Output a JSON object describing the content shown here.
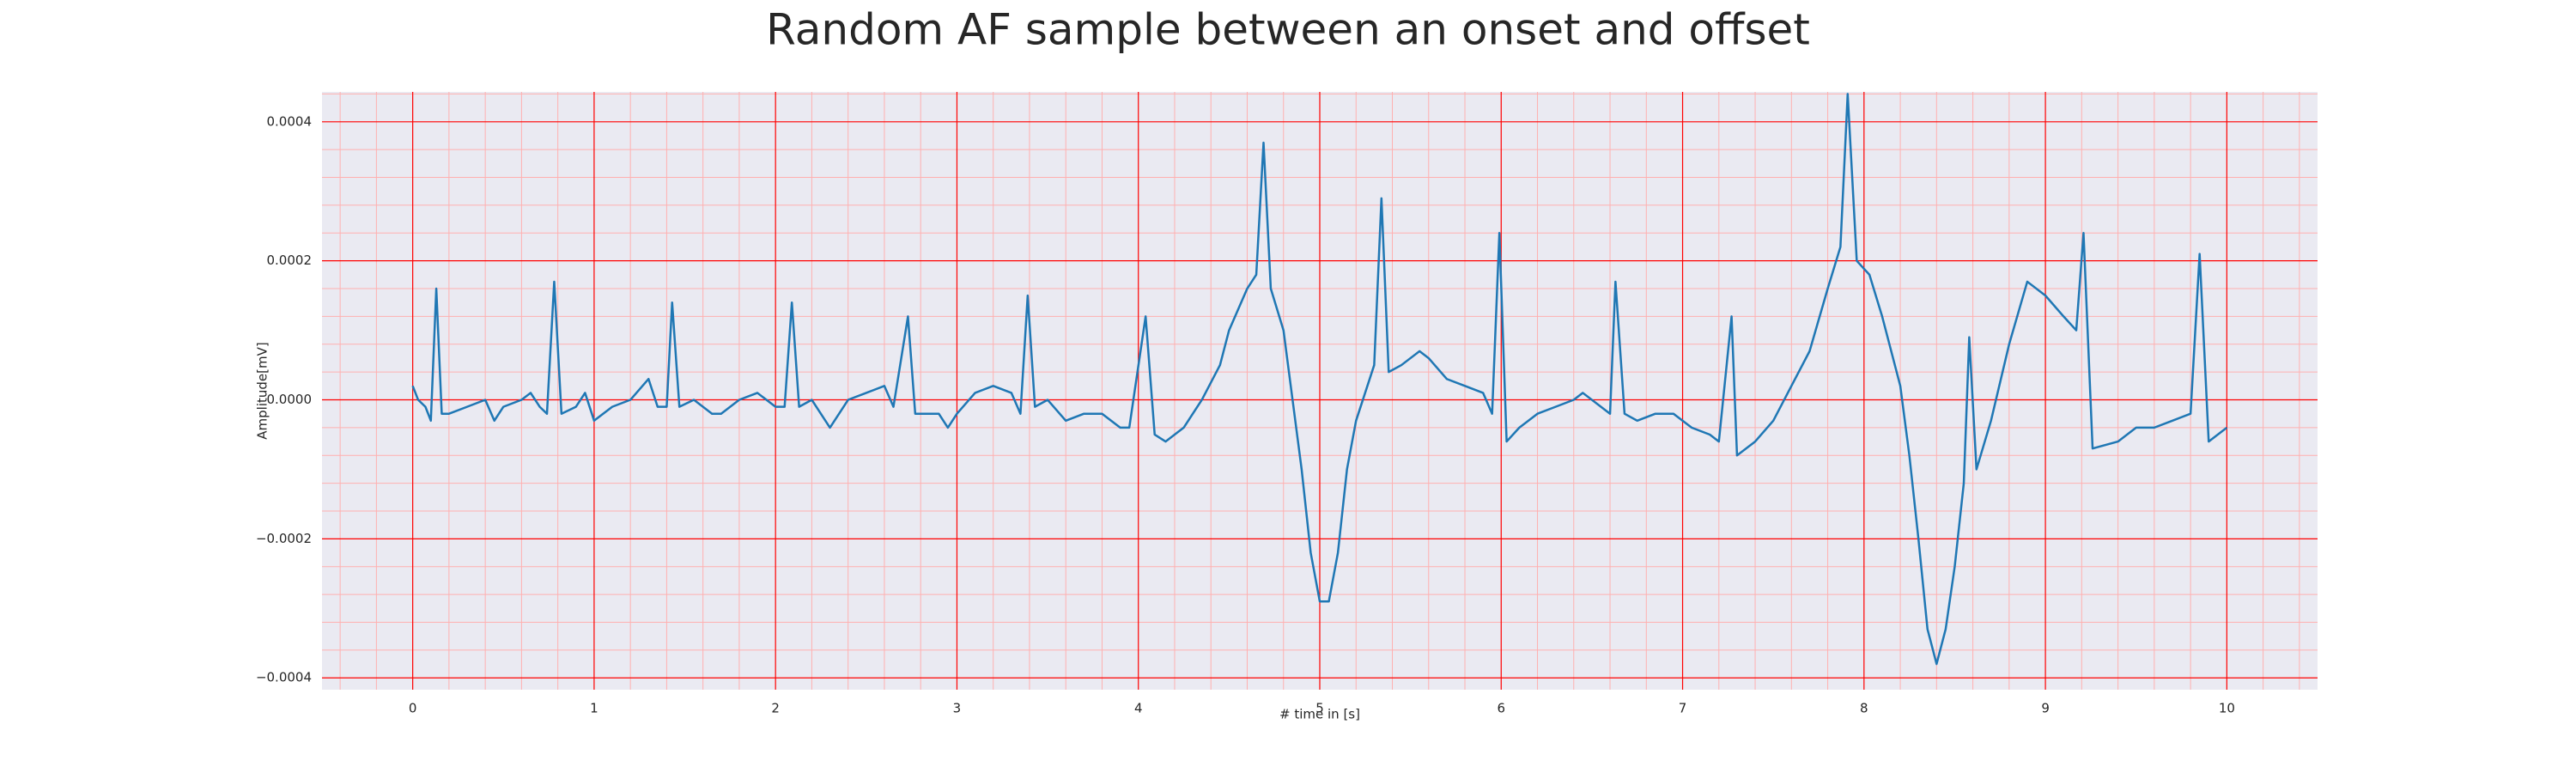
{
  "chart_data": {
    "type": "line",
    "title": "Random AF sample between an onset and offset",
    "x_label": "# time in [s]",
    "y_label": "Amplitude[mV]",
    "color": "#1f77b4",
    "x": [
      0,
      0.03,
      0.07,
      0.1,
      0.13,
      0.16,
      0.2,
      0.3,
      0.4,
      0.45,
      0.5,
      0.6,
      0.65,
      0.7,
      0.74,
      0.78,
      0.82,
      0.9,
      0.95,
      1.0,
      1.1,
      1.2,
      1.3,
      1.35,
      1.4,
      1.43,
      1.47,
      1.55,
      1.65,
      1.7,
      1.8,
      1.9,
      2.0,
      2.05,
      2.09,
      2.13,
      2.2,
      2.3,
      2.4,
      2.5,
      2.6,
      2.65,
      2.73,
      2.77,
      2.9,
      2.95,
      3.0,
      3.1,
      3.2,
      3.3,
      3.35,
      3.39,
      3.43,
      3.5,
      3.6,
      3.7,
      3.8,
      3.9,
      3.95,
      4.04,
      4.09,
      4.15,
      4.25,
      4.35,
      4.45,
      4.5,
      4.6,
      4.65,
      4.69,
      4.73,
      4.8,
      4.85,
      4.9,
      4.95,
      5.0,
      5.05,
      5.1,
      5.15,
      5.2,
      5.25,
      5.3,
      5.34,
      5.38,
      5.45,
      5.55,
      5.6,
      5.7,
      5.8,
      5.9,
      5.95,
      5.99,
      6.03,
      6.1,
      6.2,
      6.3,
      6.4,
      6.45,
      6.55,
      6.6,
      6.63,
      6.68,
      6.75,
      6.85,
      6.95,
      7.05,
      7.15,
      7.2,
      7.27,
      7.3,
      7.4,
      7.5,
      7.6,
      7.7,
      7.8,
      7.87,
      7.91,
      7.96,
      8.03,
      8.1,
      8.2,
      8.25,
      8.3,
      8.35,
      8.4,
      8.45,
      8.5,
      8.55,
      8.58,
      8.62,
      8.7,
      8.8,
      8.9,
      9.0,
      9.1,
      9.17,
      9.21,
      9.26,
      9.4,
      9.5,
      9.6,
      9.7,
      9.8,
      9.85,
      9.9,
      10.0
    ],
    "values": [
      2e-05,
      0,
      -1e-05,
      -3e-05,
      0.00016,
      -2e-05,
      -2e-05,
      -1e-05,
      0,
      -3e-05,
      -1e-05,
      0,
      1e-05,
      -1e-05,
      -2e-05,
      0.00017,
      -2e-05,
      -1e-05,
      1e-05,
      -3e-05,
      -1e-05,
      0,
      3e-05,
      -1e-05,
      -1e-05,
      0.00014,
      -1e-05,
      0,
      -2e-05,
      -2e-05,
      0,
      1e-05,
      -1e-05,
      -1e-05,
      0.00014,
      -1e-05,
      0,
      -4e-05,
      0,
      1e-05,
      2e-05,
      -1e-05,
      0.00012,
      -2e-05,
      -2e-05,
      -4e-05,
      -2e-05,
      1e-05,
      2e-05,
      1e-05,
      -2e-05,
      0.00015,
      -1e-05,
      0,
      -3e-05,
      -2e-05,
      -2e-05,
      -4e-05,
      -4e-05,
      0.00012,
      -5e-05,
      -6e-05,
      -4e-05,
      0,
      5e-05,
      0.0001,
      0.00016,
      0.00018,
      0.00037,
      0.00016,
      0.0001,
      0,
      -0.0001,
      -0.00022,
      -0.00029,
      -0.00029,
      -0.00022,
      -0.0001,
      -3e-05,
      1e-05,
      5e-05,
      0.00029,
      4e-05,
      5e-05,
      7e-05,
      6e-05,
      3e-05,
      2e-05,
      1e-05,
      -2e-05,
      0.00024,
      -6e-05,
      -4e-05,
      -2e-05,
      -1e-05,
      0,
      1e-05,
      -1e-05,
      -2e-05,
      0.00017,
      -2e-05,
      -3e-05,
      -2e-05,
      -2e-05,
      -4e-05,
      -5e-05,
      -6e-05,
      0.00012,
      -8e-05,
      -6e-05,
      -3e-05,
      2e-05,
      7e-05,
      0.00016,
      0.00022,
      0.00044,
      0.0002,
      0.00018,
      0.00012,
      2e-05,
      -8e-05,
      -0.0002,
      -0.00033,
      -0.00038,
      -0.00033,
      -0.00024,
      -0.00012,
      9e-05,
      -0.0001,
      -3e-05,
      8e-05,
      0.00017,
      0.00015,
      0.00012,
      0.0001,
      0.00024,
      -7e-05,
      -6e-05,
      -4e-05,
      -4e-05,
      -3e-05,
      -2e-05,
      0.00021,
      -6e-05,
      -4e-05
    ],
    "xlim": [
      -0.5,
      10.5
    ],
    "xticks": [
      0,
      1,
      2,
      3,
      4,
      5,
      6,
      7,
      8,
      9,
      10
    ],
    "ylim": [
      -0.000417,
      0.000443
    ],
    "yticks": [
      {
        "value": -0.0004,
        "label": "−0.0004"
      },
      {
        "value": -0.0002,
        "label": "−0.0002"
      },
      {
        "value": 0,
        "label": "0.0000"
      },
      0.0002,
      0.0004
    ],
    "grid": true,
    "grid_color": "#ff0000",
    "minor_grid": true
  }
}
